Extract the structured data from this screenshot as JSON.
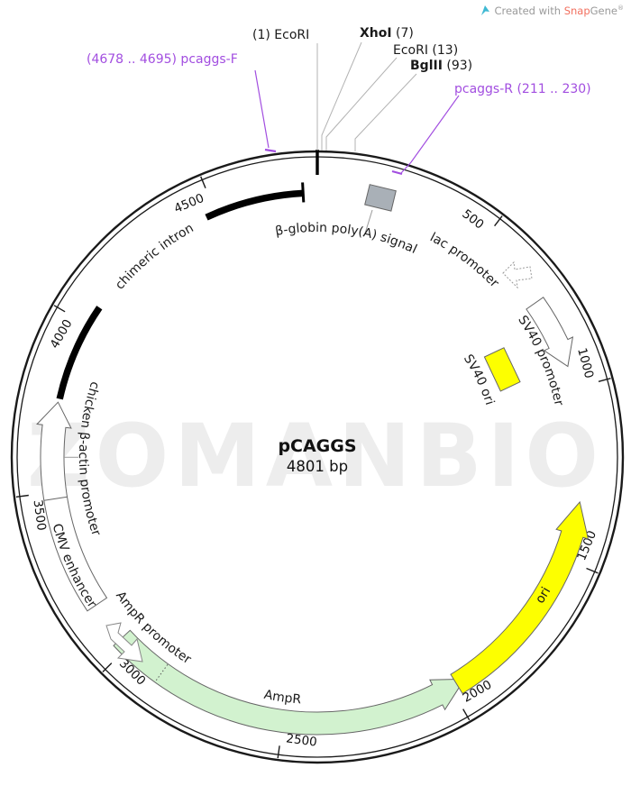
{
  "credit": {
    "prefix": "Created with ",
    "brand_accent": "Snap",
    "brand_rest": "Gene",
    "registered": "®"
  },
  "plasmid": {
    "name": "pCAGGS",
    "size": "4801 bp",
    "length_bp": 4801
  },
  "watermark": "ZOMANBIO",
  "ticks": [
    500,
    1000,
    1500,
    2000,
    2500,
    3000,
    3500,
    4000,
    4500
  ],
  "features": [
    {
      "id": "chimeric-intron",
      "label": "chimeric intron",
      "type": "arc",
      "start": 3765,
      "end": 4760,
      "color": "#000000"
    },
    {
      "id": "cmv-enhancer",
      "label": "CMV enhancer",
      "type": "band",
      "start": 3150,
      "end": 3480,
      "fill": "#ffffff"
    },
    {
      "id": "cba-promoter",
      "label": "chicken β-actin promoter",
      "type": "band-arrow",
      "start": 3480,
      "end": 3760,
      "direction": "cw",
      "fill": "#ffffff"
    },
    {
      "id": "ampr-promoter",
      "label": "AmpR promoter",
      "type": "promoter-icon",
      "start": 3030,
      "end": 3090,
      "direction": "ccw",
      "fill": "#ffffff"
    },
    {
      "id": "ampr",
      "label": "AmpR",
      "type": "band-arrow",
      "start": 1953,
      "end": 3030,
      "direction": "ccw",
      "fill": "#d2f2cf"
    },
    {
      "id": "ori",
      "label": "ori",
      "type": "band-arrow",
      "start": 1330,
      "end": 1980,
      "direction": "ccw",
      "fill": "#fdff00"
    },
    {
      "id": "sv40-ori",
      "label": "SV40 ori",
      "type": "box",
      "start": 810,
      "end": 915,
      "fill": "#fdff00"
    },
    {
      "id": "sv40-promoter",
      "label": "SV40 promoter",
      "type": "band-arrow",
      "start": 730,
      "end": 935,
      "direction": "cw",
      "fill": "#ffffff"
    },
    {
      "id": "lac-promoter",
      "label": "lac promoter",
      "type": "promoter-icon",
      "start": 600,
      "end": 660,
      "direction": "ccw",
      "fill": "#ffffff"
    },
    {
      "id": "bglobin-polya",
      "label": "β-globin poly(A) signal",
      "type": "box",
      "start": 150,
      "end": 215,
      "fill": "#a9b0b7"
    }
  ],
  "enzymes": [
    {
      "pre": "(1) ",
      "name": "EcoRI",
      "post": "",
      "site": 1
    },
    {
      "pre": "",
      "name": "XhoI",
      "post": " (7)",
      "site": 7
    },
    {
      "pre": "",
      "name": "EcoRI",
      "post": " (13)",
      "site": 13
    },
    {
      "pre": "",
      "name": "BglII",
      "post": " (93)",
      "site": 93
    }
  ],
  "primers": [
    {
      "label": "(4678 .. 4695) pcaggs-F",
      "name": "pcaggs-F",
      "range": "4678 .. 4695"
    },
    {
      "label": "pcaggs-R (211 .. 230)",
      "name": "pcaggs-R",
      "range": "211 .. 230"
    }
  ],
  "colors": {
    "ring": "#1a1a1a",
    "feature_outline": "#666666",
    "green": "#d2f2cf",
    "yellow": "#fdff00",
    "gray_box": "#a9b0b7",
    "primer": "#a24ee0",
    "enzyme_leader": "#b3b3b3",
    "watermark": "#ededed",
    "credit_logo": "#3fb9d3"
  }
}
